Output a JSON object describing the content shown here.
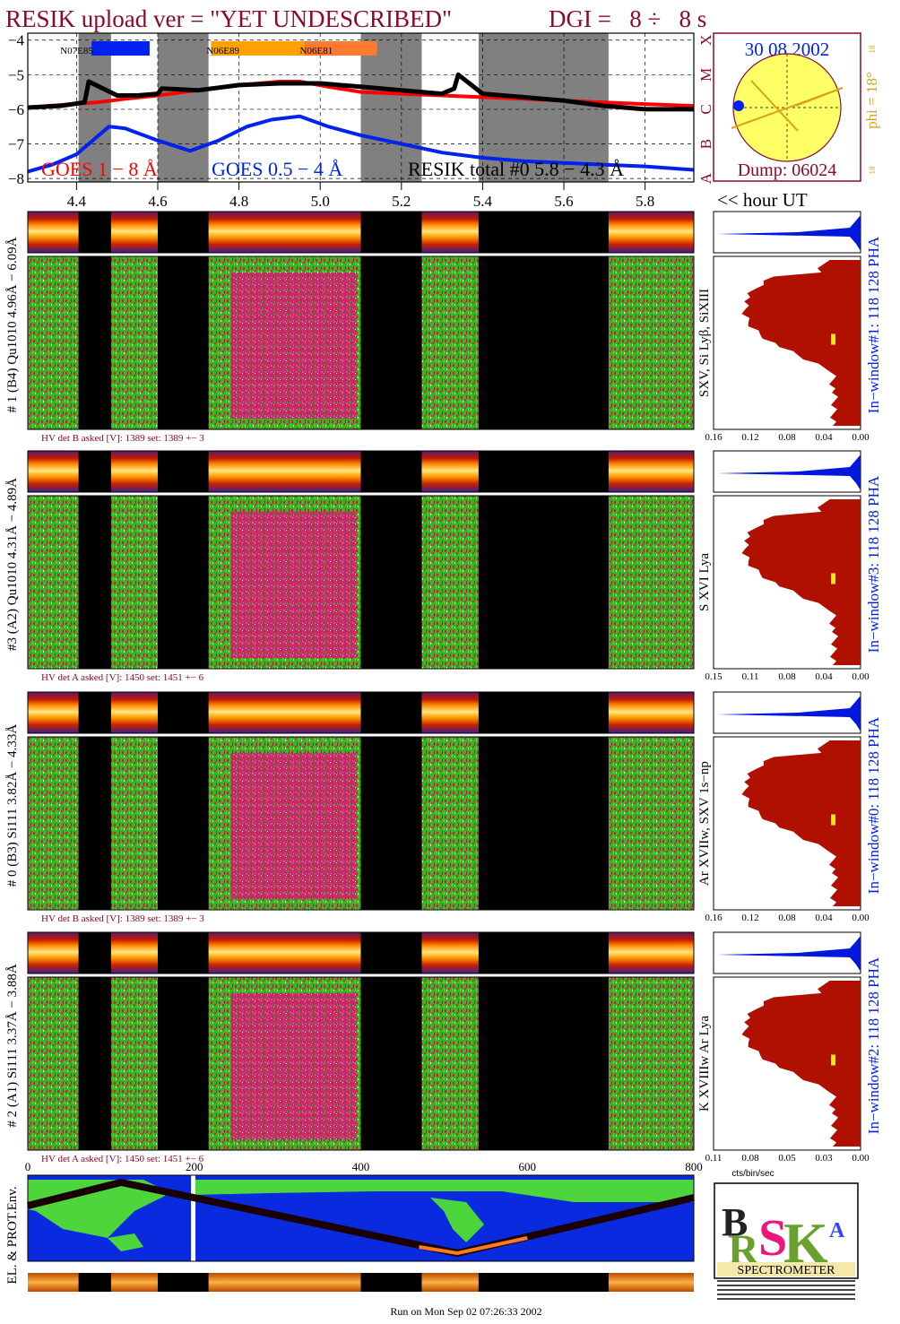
{
  "header": {
    "title_left": "RESIK upload ver = \"YET UNDESCRIBED\"",
    "title_right": "DGI =   8 ÷   8 s"
  },
  "top_plot": {
    "yticks": [
      "−4",
      "−5",
      "−6",
      "−7",
      "−8"
    ],
    "class_labels": [
      "X",
      "M",
      "C",
      "B",
      "A"
    ],
    "active_regions": [
      "N07E85",
      "N06E89",
      "N06E81"
    ],
    "legend": {
      "goes18": "GOES 1 − 8 Å",
      "goes054": "GOES 0.5 − 4 Å",
      "resik": "RESIK total #0  5.8 − 4.3 Å"
    }
  },
  "sun": {
    "date": "30 08 2002",
    "phi": "phi = 18°",
    "phi_top": "18",
    "phi_bottom": "18",
    "dump": "Dump: 06024"
  },
  "time_axis": {
    "ticks": [
      "4.4",
      "4.6",
      "4.8",
      "5.0",
      "5.2",
      "5.4",
      "5.6",
      "5.8"
    ],
    "unit_label": "<< hour UT"
  },
  "channels": [
    {
      "left_label": "# 1 (B4) Qu1010 4.96Å − 6.09Å",
      "hv": "HV det B asked [V]:  1389 set:  1389 +−   3",
      "line_ids": "SXV, Si Lyβ, SiXIII",
      "window": "In−window#1:  118 128  PHA",
      "pha_ticks": [
        "0.16",
        "0.12",
        "0.08",
        "0.04",
        "0.00"
      ]
    },
    {
      "left_label": "#3 (A2) Qu1010  4.31Å − 4.89Å",
      "hv": "HV det A asked [V]:  1450 set:  1451 +−   6",
      "line_ids": "S XVI Lya",
      "window": "In−window#3:  118 128  PHA",
      "pha_ticks": [
        "0.15",
        "0.11",
        "0.08",
        "0.04",
        "0.00"
      ]
    },
    {
      "left_label": "# 0 (B3) Si111  3.82Å − 4.33Å",
      "hv": "HV det B asked [V]:  1389 set:  1389 +−   3",
      "line_ids": "Ar XVIIw,  SXV 1s−np",
      "window": "In−window#0:  118 128  PHA",
      "pha_ticks": [
        "0.16",
        "0.12",
        "0.08",
        "0.04",
        "0.00"
      ]
    },
    {
      "left_label": "# 2 (A1) Si111  3.37Å − 3.88Å",
      "hv": "HV det A asked [V]:  1450 set:  1451 +−   6",
      "line_ids": "K XVIIIw  Ar Lya",
      "window": "In−window#2:  118 128  PHA",
      "pha_ticks": [
        "0.11",
        "0.08",
        "0.05",
        "0.03",
        "0.00"
      ]
    }
  ],
  "pha_xlabel": "cts/bin/sec",
  "orbit": {
    "ticks": [
      "0",
      "200",
      "400",
      "600",
      "800"
    ],
    "label": "EL. & PROT.Env."
  },
  "logo": {
    "spectrometer": "SPECTROMETER"
  },
  "footer": {
    "run_on": "Run on Mon Sep 02 07:26:33 2002"
  },
  "colors": {
    "title": "#8b0a2a",
    "goes18": "#ff0000",
    "goes054": "#0022ee",
    "gap": "#808080",
    "sun": "#ffff66",
    "pha": "#b01000",
    "pha_blue": "#0018dd",
    "ocean": "#0a2ae0",
    "land": "#4cd63c",
    "gold": "#d9a21b"
  },
  "chart_data": {
    "type": "line",
    "title": "RESIK upload ver = \"YET UNDESCRIBED\"",
    "xlabel": "hour UT",
    "ylabel": "",
    "xlim": [
      4.28,
      5.92
    ],
    "ylim": [
      -8.1,
      -3.8
    ],
    "x_ticks": [
      4.4,
      4.6,
      4.8,
      5.0,
      5.2,
      5.4,
      5.6,
      5.8
    ],
    "gaps_hours": [
      [
        4.405,
        4.485
      ],
      [
        4.6,
        4.725
      ],
      [
        5.1,
        5.25
      ],
      [
        5.39,
        5.71
      ]
    ],
    "series": [
      {
        "name": "GOES 1 − 8 Å",
        "x": [
          4.28,
          4.33,
          4.39,
          4.45,
          4.52,
          4.6,
          4.7,
          4.8,
          4.9,
          4.95,
          5.02,
          5.1,
          5.2,
          5.3,
          5.4,
          5.5,
          5.6,
          5.7,
          5.8,
          5.92
        ],
        "y": [
          -5.95,
          -5.9,
          -5.85,
          -5.8,
          -5.7,
          -5.6,
          -5.45,
          -5.3,
          -5.2,
          -5.2,
          -5.35,
          -5.5,
          -5.55,
          -5.6,
          -5.65,
          -5.7,
          -5.75,
          -5.8,
          -5.85,
          -5.9
        ]
      },
      {
        "name": "GOES 0.5 − 4 Å",
        "x": [
          4.28,
          4.34,
          4.4,
          4.45,
          4.48,
          4.52,
          4.6,
          4.68,
          4.75,
          4.82,
          4.88,
          4.95,
          5.02,
          5.1,
          5.2,
          5.3,
          5.4,
          5.5,
          5.6,
          5.7,
          5.8,
          5.92
        ],
        "y": [
          -7.8,
          -7.6,
          -7.3,
          -6.8,
          -6.5,
          -6.55,
          -6.9,
          -7.2,
          -6.9,
          -6.5,
          -6.3,
          -6.2,
          -6.5,
          -6.75,
          -7.0,
          -7.25,
          -7.4,
          -7.5,
          -7.55,
          -7.6,
          -7.65,
          -7.75
        ]
      },
      {
        "name": "RESIK total #0  5.8 − 4.3 Å",
        "x": [
          4.28,
          4.36,
          4.42,
          4.43,
          4.5,
          4.55,
          4.6,
          4.61,
          4.7,
          4.8,
          4.9,
          5.0,
          5.1,
          5.2,
          5.3,
          5.33,
          5.34,
          5.4,
          5.5,
          5.6,
          5.7,
          5.8,
          5.92
        ],
        "y": [
          -5.95,
          -5.9,
          -5.8,
          -5.2,
          -5.6,
          -5.6,
          -5.55,
          -5.4,
          -5.45,
          -5.3,
          -5.25,
          -5.25,
          -5.35,
          -5.45,
          -5.55,
          -5.4,
          -5.0,
          -5.55,
          -5.65,
          -5.75,
          -5.9,
          -6.0,
          -6.0
        ]
      }
    ]
  }
}
